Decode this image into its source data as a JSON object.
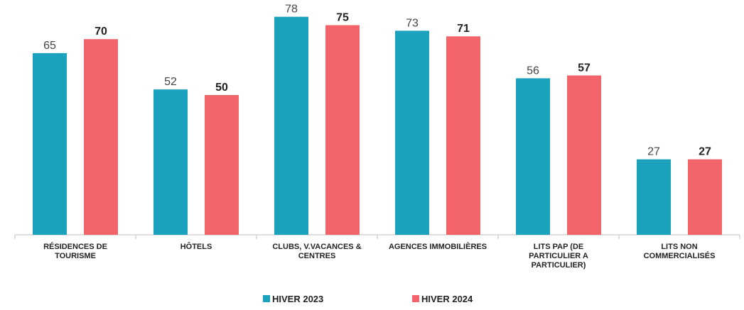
{
  "chart_data": {
    "type": "bar",
    "categories": [
      "RÉSIDENCES DE TOURISME",
      "HÔTELS",
      "CLUBS, V.VACANCES & CENTRES",
      "AGENCES IMMOBILIÈRES",
      "LITS PAP (DE PARTICULIER A PARTICULIER)",
      "LITS NON COMMERCIALISÉS"
    ],
    "series": [
      {
        "name": "HIVER 2023",
        "color": "#1ba3bd",
        "values": [
          65,
          52,
          78,
          73,
          56,
          27
        ]
      },
      {
        "name": "HIVER 2024",
        "color": "#f2646a",
        "values": [
          70,
          50,
          75,
          71,
          57,
          27
        ]
      }
    ],
    "ylim": [
      0,
      84
    ],
    "grid": false,
    "legend": "bottom"
  }
}
